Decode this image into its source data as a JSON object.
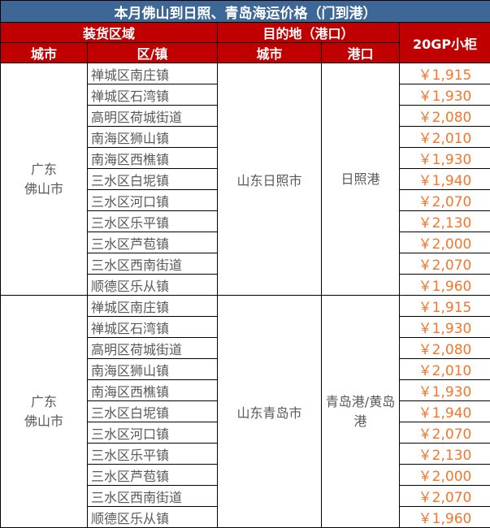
{
  "title": "本月佛山到日照、青岛海运价格（门到港）",
  "headers": {
    "loading_area": "装货区域",
    "destination": "目的地（港口）",
    "price_col": "20GP小柜",
    "city": "城市",
    "district": "区/镇",
    "dest_city": "城市",
    "port": "港口"
  },
  "colors": {
    "title_bg": "#3C6796",
    "header_bg": "#C00000",
    "price_text": "#F4762C"
  },
  "groups": [
    {
      "origin_city": "广东\n佛山市",
      "dest_city": "山东日照市",
      "port": "日照港",
      "rows": [
        {
          "area": "禅城区南庄镇",
          "price": "￥1,915"
        },
        {
          "area": "禅城区石湾镇",
          "price": "￥1,930"
        },
        {
          "area": "高明区荷城街道",
          "price": "￥2,080"
        },
        {
          "area": "南海区狮山镇",
          "price": "￥2,010"
        },
        {
          "area": "南海区西樵镇",
          "price": "￥1,930"
        },
        {
          "area": "三水区白坭镇",
          "price": "￥1,940"
        },
        {
          "area": "三水区河口镇",
          "price": "￥2,070"
        },
        {
          "area": "三水区乐平镇",
          "price": "￥2,130"
        },
        {
          "area": "三水区芦苞镇",
          "price": "￥2,000"
        },
        {
          "area": "三水区西南街道",
          "price": "￥2,070"
        },
        {
          "area": "顺德区乐从镇",
          "price": "￥1,960"
        }
      ]
    },
    {
      "origin_city": "广东\n佛山市",
      "dest_city": "山东青岛市",
      "port": "青岛港/黄岛港",
      "rows": [
        {
          "area": "禅城区南庄镇",
          "price": "￥1,915"
        },
        {
          "area": "禅城区石湾镇",
          "price": "￥1,930"
        },
        {
          "area": "高明区荷城街道",
          "price": "￥2,080"
        },
        {
          "area": "南海区狮山镇",
          "price": "￥2,010"
        },
        {
          "area": "南海区西樵镇",
          "price": "￥1,930"
        },
        {
          "area": "三水区白坭镇",
          "price": "￥1,940"
        },
        {
          "area": "三水区河口镇",
          "price": "￥2,070"
        },
        {
          "area": "三水区乐平镇",
          "price": "￥2,130"
        },
        {
          "area": "三水区芦苞镇",
          "price": "￥2,000"
        },
        {
          "area": "三水区西南街道",
          "price": "￥2,070"
        },
        {
          "area": "顺德区乐从镇",
          "price": "￥1,960"
        }
      ]
    }
  ]
}
